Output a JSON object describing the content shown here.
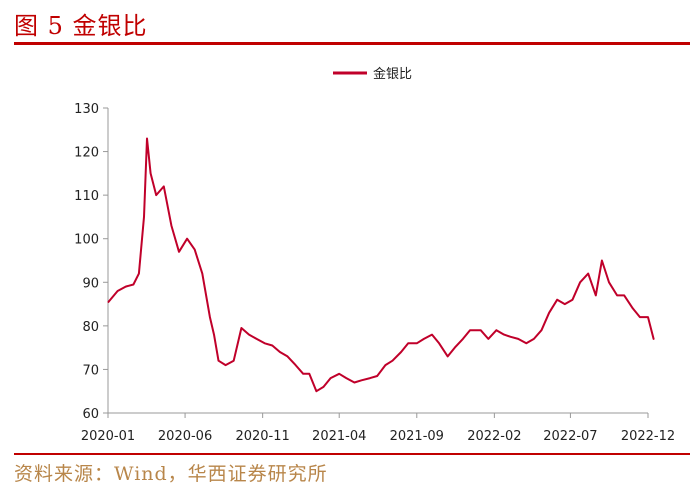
{
  "figure": {
    "title": "图 5 金银比",
    "source": "资料来源：Wind，华西证券研究所"
  },
  "colors": {
    "accent": "#c00000",
    "series": "#c0002a",
    "source_text": "#b8864a",
    "axis": "#999999"
  },
  "chart_data": {
    "type": "line",
    "title": "",
    "xlabel": "",
    "ylabel": "",
    "ylim": [
      60,
      130
    ],
    "yticks": [
      "60",
      "70",
      "80",
      "90",
      "100",
      "110",
      "120",
      "130"
    ],
    "xticks": [
      "2020-01",
      "2020-06",
      "2020-11",
      "2021-04",
      "2021-09",
      "2022-02",
      "2022-07",
      "2022-12"
    ],
    "legend_position": "top-center",
    "grid": false,
    "series": [
      {
        "name": "金银比",
        "x": [
          "2020-01-02",
          "2020-01-20",
          "2020-02-05",
          "2020-02-20",
          "2020-03-02",
          "2020-03-12",
          "2020-03-18",
          "2020-03-25",
          "2020-04-05",
          "2020-04-20",
          "2020-05-05",
          "2020-05-20",
          "2020-06-05",
          "2020-06-20",
          "2020-07-05",
          "2020-07-20",
          "2020-07-28",
          "2020-08-06",
          "2020-08-20",
          "2020-09-05",
          "2020-09-20",
          "2020-10-05",
          "2020-10-20",
          "2020-11-05",
          "2020-11-20",
          "2020-12-05",
          "2020-12-20",
          "2021-01-05",
          "2021-01-20",
          "2021-02-01",
          "2021-02-15",
          "2021-03-01",
          "2021-03-15",
          "2021-04-01",
          "2021-04-15",
          "2021-05-01",
          "2021-05-15",
          "2021-06-01",
          "2021-06-15",
          "2021-07-01",
          "2021-07-15",
          "2021-08-01",
          "2021-08-15",
          "2021-09-01",
          "2021-09-15",
          "2021-10-01",
          "2021-10-15",
          "2021-11-01",
          "2021-11-15",
          "2021-12-01",
          "2021-12-15",
          "2022-01-05",
          "2022-01-20",
          "2022-02-05",
          "2022-02-20",
          "2022-03-05",
          "2022-03-20",
          "2022-04-05",
          "2022-04-20",
          "2022-05-05",
          "2022-05-20",
          "2022-06-05",
          "2022-06-20",
          "2022-07-05",
          "2022-07-20",
          "2022-08-05",
          "2022-08-20",
          "2022-09-01",
          "2022-09-15",
          "2022-10-01",
          "2022-10-15",
          "2022-11-01",
          "2022-11-15",
          "2022-12-01",
          "2022-12-12"
        ],
        "values": [
          85.5,
          88,
          89,
          89.5,
          92,
          105,
          123,
          115,
          110,
          112,
          103,
          97,
          100,
          97.5,
          92,
          82,
          78,
          72,
          71,
          72,
          79.5,
          78,
          77,
          76,
          75.5,
          74,
          73,
          71,
          69,
          69,
          65,
          66,
          68,
          69,
          68,
          67,
          67.5,
          68,
          68.5,
          71,
          72,
          74,
          76,
          76,
          77,
          78,
          76,
          73,
          75,
          77,
          79,
          79,
          77,
          79,
          78,
          77.5,
          77,
          76,
          77,
          79,
          83,
          86,
          85,
          86,
          90,
          92,
          87,
          95,
          90,
          87,
          87,
          84,
          82,
          82,
          77
        ]
      }
    ]
  }
}
